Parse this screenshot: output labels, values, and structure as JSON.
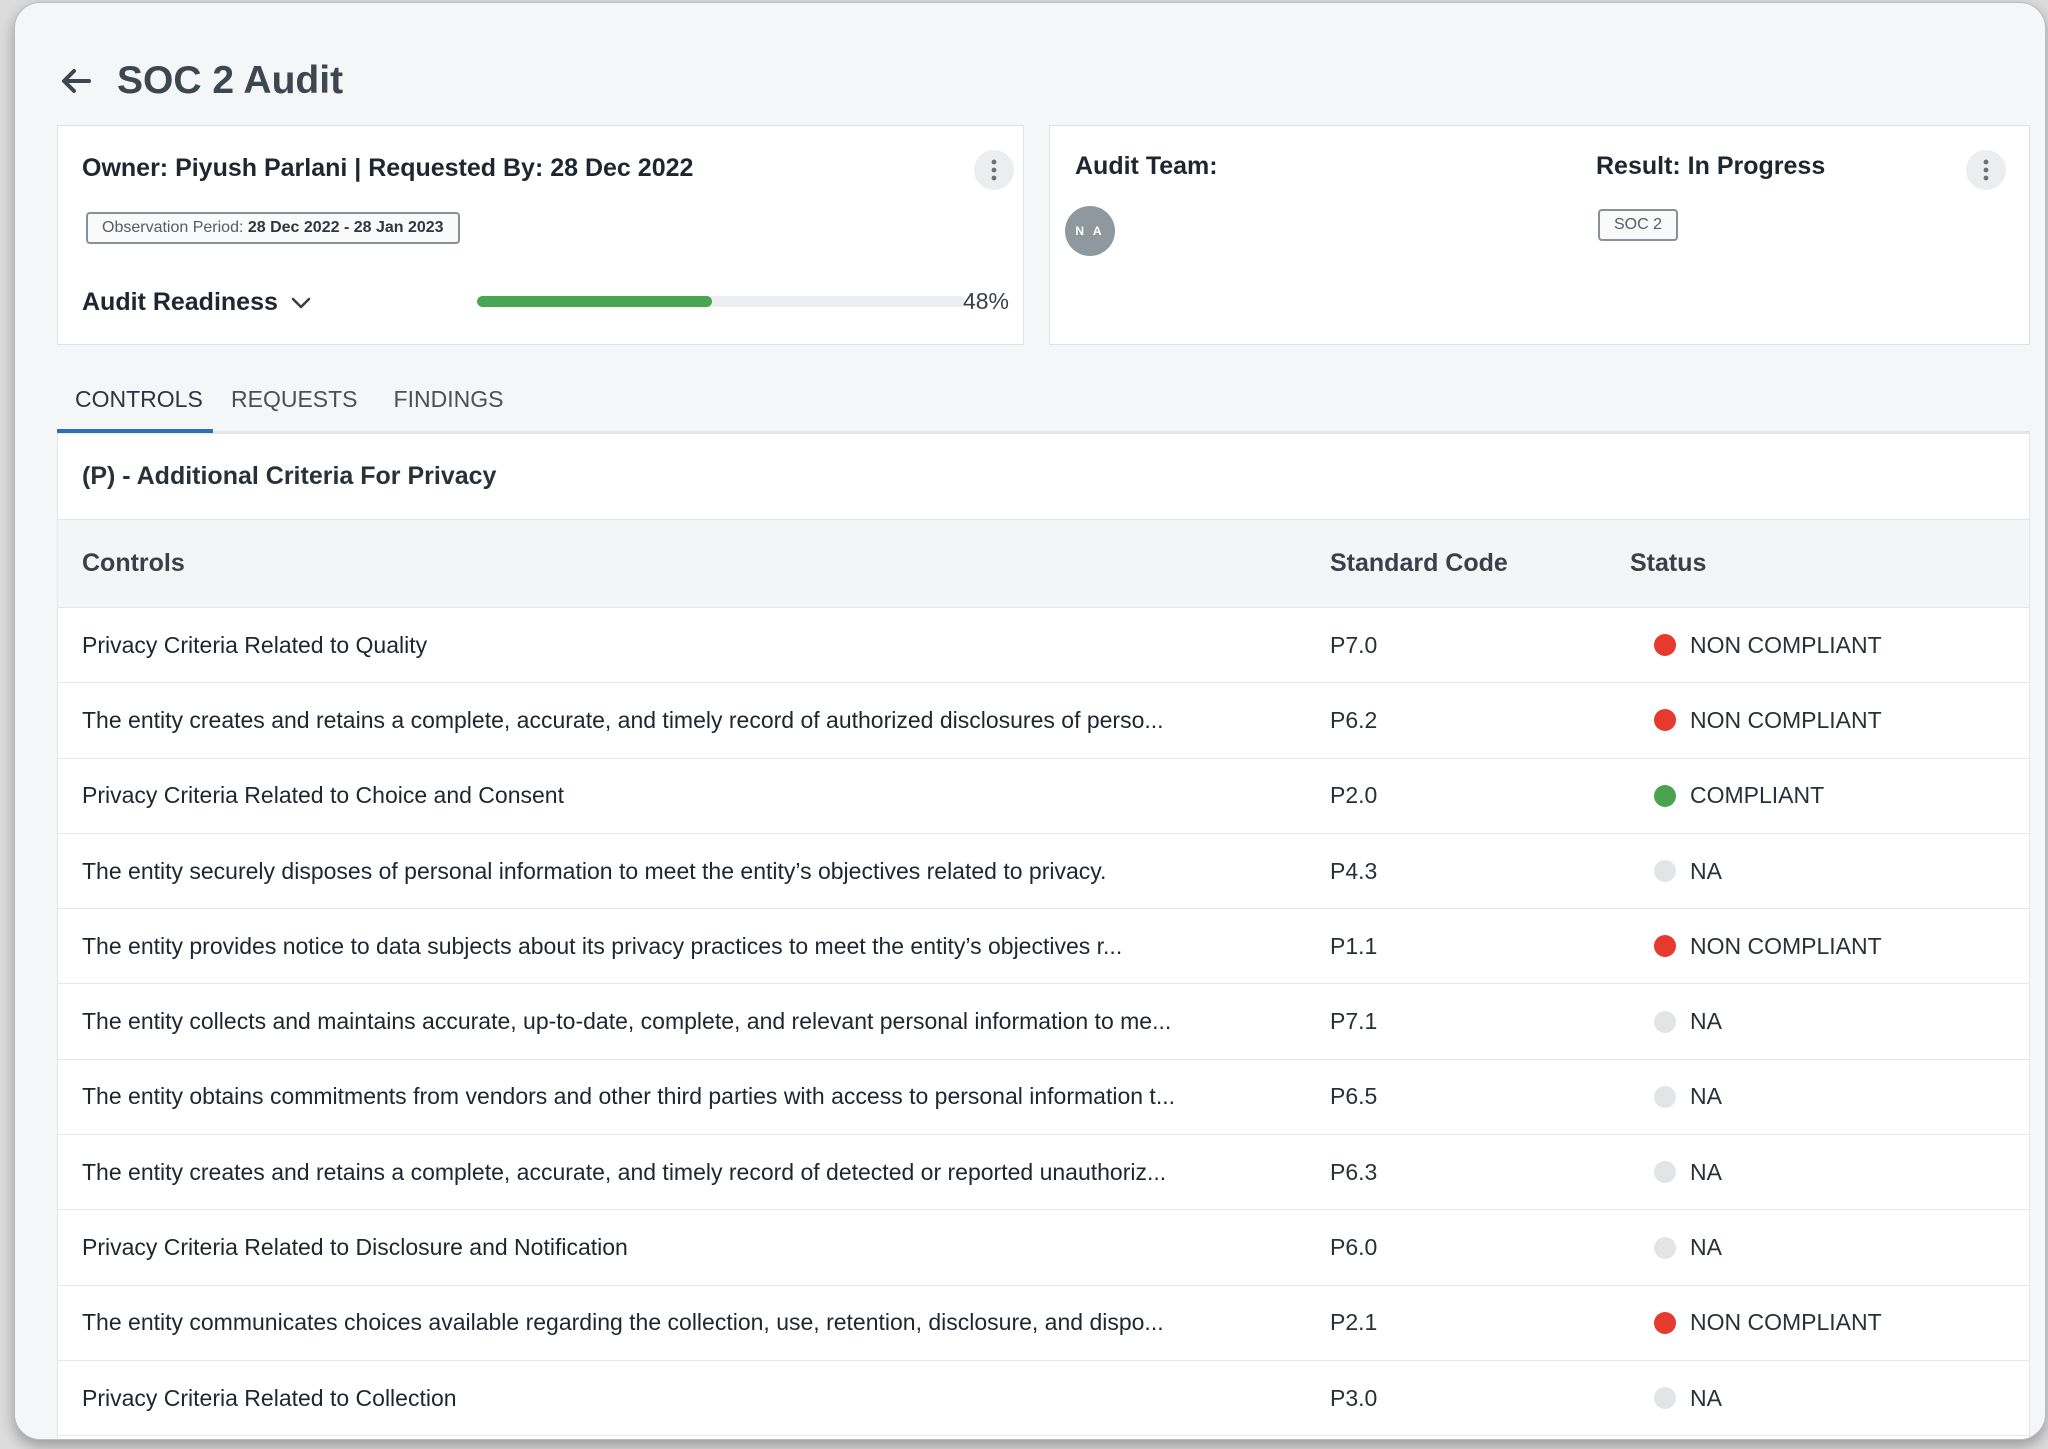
{
  "page": {
    "title": "SOC 2 Audit"
  },
  "summary": {
    "owner_line": "Owner: Piyush Parlani | Requested By: 28 Dec 2022",
    "observation_label": "Observation Period:",
    "observation_value": "28 Dec 2022 - 28 Jan 2023",
    "readiness_label": "Audit Readiness",
    "readiness_percent": 48,
    "readiness_text": "48%"
  },
  "team": {
    "label": "Audit Team:",
    "avatar_initials": "N A",
    "result": "Result: In Progress",
    "framework": "SOC 2"
  },
  "tabs": [
    {
      "label": "CONTROLS",
      "active": true
    },
    {
      "label": "REQUESTS",
      "active": false
    },
    {
      "label": "FINDINGS",
      "active": false
    }
  ],
  "section": {
    "title": "(P) - Additional Criteria For Privacy"
  },
  "table": {
    "headers": {
      "control": "Controls",
      "code": "Standard Code",
      "status": "Status"
    },
    "rows": [
      {
        "control": "Privacy Criteria Related to Quality",
        "code": "P7.0",
        "status": "NON COMPLIANT",
        "color": "#e63a2e"
      },
      {
        "control": "The entity creates and retains a complete, accurate, and timely record of authorized disclosures of perso...",
        "code": "P6.2",
        "status": "NON COMPLIANT",
        "color": "#e63a2e"
      },
      {
        "control": "Privacy Criteria Related to Choice and Consent",
        "code": "P2.0",
        "status": "COMPLIANT",
        "color": "#4ba34f"
      },
      {
        "control": "The entity securely disposes of personal information to meet the entity’s objectives related to privacy.",
        "code": "P4.3",
        "status": "NA",
        "color": "#e3e4e6"
      },
      {
        "control": "The entity provides notice to data subjects about its privacy practices to meet the entity’s objectives r...",
        "code": "P1.1",
        "status": "NON COMPLIANT",
        "color": "#e63a2e"
      },
      {
        "control": "The entity collects and maintains accurate, up-to-date, complete, and relevant personal information to me...",
        "code": "P7.1",
        "status": "NA",
        "color": "#e3e4e6"
      },
      {
        "control": "The entity obtains commitments from vendors and other third parties with access to personal information t...",
        "code": "P6.5",
        "status": "NA",
        "color": "#e3e4e6"
      },
      {
        "control": "The entity creates and retains a complete, accurate, and timely record of detected or reported unauthoriz...",
        "code": "P6.3",
        "status": "NA",
        "color": "#e3e4e6"
      },
      {
        "control": "Privacy Criteria Related to Disclosure and Notification",
        "code": "P6.0",
        "status": "NA",
        "color": "#e3e4e6"
      },
      {
        "control": "The entity communicates choices available regarding the collection, use, retention, disclosure, and dispo...",
        "code": "P2.1",
        "status": "NON COMPLIANT",
        "color": "#e63a2e"
      },
      {
        "control": "Privacy Criteria Related to Collection",
        "code": "P3.0",
        "status": "NA",
        "color": "#e3e4e6"
      }
    ]
  },
  "icons": {
    "back": "arrow-left-icon",
    "menu": "kebab-menu-icon",
    "chevron": "chevron-down-icon"
  }
}
